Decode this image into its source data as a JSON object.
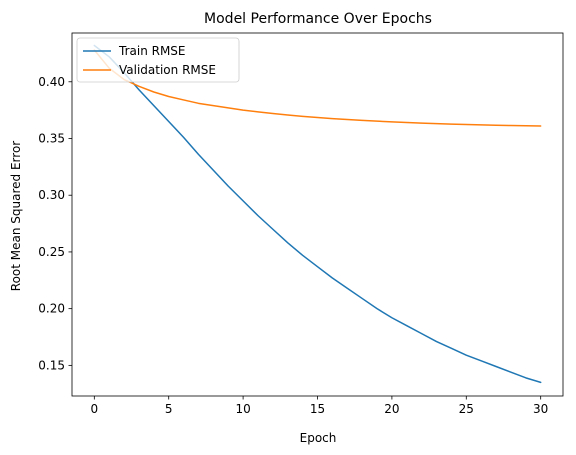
{
  "chart_data": {
    "type": "line",
    "title": "Model Performance Over Epochs",
    "xlabel": "Epoch",
    "ylabel": "Root Mean Squared Error",
    "xlim": [
      -1.5,
      31.5
    ],
    "ylim": [
      0.123,
      0.443
    ],
    "xticks": [
      0,
      5,
      10,
      15,
      20,
      25,
      30
    ],
    "yticks": [
      0.15,
      0.2,
      0.25,
      0.3,
      0.35,
      0.4
    ],
    "ytick_labels": [
      "0.15",
      "0.20",
      "0.25",
      "0.30",
      "0.35",
      "0.40"
    ],
    "grid": false,
    "legend": "upper left",
    "x": [
      0,
      1,
      2,
      3,
      4,
      5,
      6,
      7,
      8,
      9,
      10,
      11,
      12,
      13,
      14,
      15,
      16,
      17,
      18,
      19,
      20,
      21,
      22,
      23,
      24,
      25,
      26,
      27,
      28,
      29,
      30
    ],
    "series": [
      {
        "name": "Train RMSE",
        "color": "#1f77b4",
        "values": [
          0.432,
          0.422,
          0.408,
          0.393,
          0.379,
          0.365,
          0.351,
          0.336,
          0.322,
          0.308,
          0.295,
          0.282,
          0.27,
          0.258,
          0.247,
          0.237,
          0.227,
          0.218,
          0.209,
          0.2,
          0.192,
          0.185,
          0.178,
          0.171,
          0.165,
          0.159,
          0.154,
          0.149,
          0.144,
          0.139,
          0.135
        ]
      },
      {
        "name": "Validation RMSE",
        "color": "#ff7f0e",
        "values": [
          0.428,
          0.412,
          0.402,
          0.396,
          0.391,
          0.387,
          0.384,
          0.381,
          0.379,
          0.377,
          0.375,
          0.3735,
          0.372,
          0.3707,
          0.3695,
          0.3685,
          0.3675,
          0.3667,
          0.366,
          0.3653,
          0.3647,
          0.3641,
          0.3636,
          0.3631,
          0.3627,
          0.3623,
          0.362,
          0.3617,
          0.3614,
          0.3612,
          0.361
        ]
      }
    ]
  }
}
